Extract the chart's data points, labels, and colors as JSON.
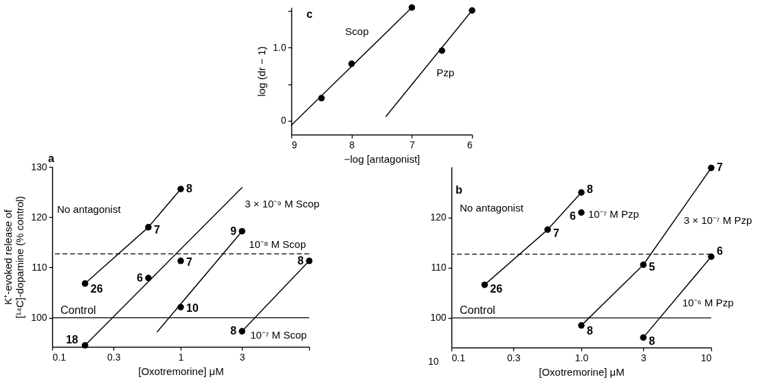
{
  "chart_data": [
    {
      "type": "scatter",
      "xlabel": "−log [antagonist]",
      "ylabel": "log (dr − 1)",
      "xlim": [
        9,
        6
      ],
      "xticks": [
        9,
        8,
        7,
        6
      ],
      "ylim": [
        -0.19,
        1.55
      ],
      "yticks": [
        0,
        {
          "value": 0.5,
          "label": null
        },
        {
          "value": 1,
          "label": "1.0"
        },
        {
          "value": 1.5,
          "label": null
        }
      ],
      "annotations": [
        "c"
      ],
      "series": [
        {
          "type": "scatter",
          "name": "Scop",
          "color": "#000000",
          "marker": "circle",
          "x": [
            8.5,
            8,
            7
          ],
          "values": [
            0.31,
            0.78,
            1.55
          ]
        },
        {
          "type": "line",
          "color": "#000000",
          "x": [
            9,
            7
          ],
          "values": [
            -0.06,
            1.55
          ]
        },
        {
          "type": "scatter",
          "name": "Pzp",
          "color": "#000000",
          "marker": "circle",
          "x": [
            6.5,
            6
          ],
          "values": [
            0.96,
            1.51
          ]
        },
        {
          "type": "line",
          "color": "#000000",
          "x": [
            7.43,
            6
          ],
          "values": [
            0.06,
            1.51
          ]
        }
      ]
    },
    {
      "type": "scatter",
      "xlabel": "[Oxotremorine] μM",
      "ylabel": "K⁺-evoked release of\n[¹⁴C]-dopamine (% control)",
      "log": "x",
      "xlim": [
        0.1,
        10
      ],
      "xticks": [
        0.1,
        0.3,
        1,
        3,
        {
          "value": 10,
          "label": null
        }
      ],
      "ylim": [
        94.2,
        130
      ],
      "yticks": [
        100,
        110,
        120,
        130
      ],
      "annotations": [
        "a",
        {
          "text": "26",
          "x": 0.18,
          "y": 106.8
        },
        {
          "text": "7",
          "x": 0.56,
          "y": 118
        },
        {
          "text": "8",
          "x": 1,
          "y": 125.6
        },
        {
          "text": "18",
          "x": 0.18,
          "y": 94.5
        },
        {
          "text": "6",
          "x": 0.56,
          "y": 107.9
        },
        {
          "text": "7",
          "x": 1,
          "y": 111.3
        },
        {
          "text": "10",
          "x": 1,
          "y": 102.1
        },
        {
          "text": "9",
          "x": 3,
          "y": 117.2
        },
        {
          "text": "8",
          "x": 3,
          "y": 97.3
        },
        {
          "text": "8",
          "x": 10,
          "y": 111.3
        }
      ],
      "ref_lines": [
        {
          "axis": "y",
          "value": 112.7,
          "line_style": "dashed"
        },
        {
          "axis": "y",
          "value": 100,
          "label": "Control"
        }
      ],
      "series": [
        {
          "type": "scatter",
          "name": "No antagonist",
          "color": "#000000",
          "marker": "circle",
          "x": [
            0.18,
            0.56,
            1
          ],
          "values": [
            106.8,
            118,
            125.6
          ]
        },
        {
          "type": "line",
          "color": "#000000",
          "x": [
            0.18,
            0.56,
            1
          ],
          "values": [
            106.8,
            118,
            125.6
          ]
        },
        {
          "type": "scatter",
          "color": "#000000",
          "marker": "circle",
          "x": [
            0.18,
            0.56,
            1
          ],
          "values": [
            94.5,
            107.9,
            111.3
          ]
        },
        {
          "type": "line",
          "name": "3 × 10⁻⁹ M Scop",
          "color": "#000000",
          "x": [
            0.18,
            3
          ],
          "values": [
            94.5,
            125.9
          ]
        },
        {
          "type": "scatter",
          "name": "10⁻⁸ M Scop",
          "color": "#000000",
          "marker": "circle",
          "x": [
            1,
            3
          ],
          "values": [
            102.1,
            117.2
          ]
        },
        {
          "type": "line",
          "color": "#000000",
          "x": [
            0.657,
            3
          ],
          "values": [
            97.2,
            117.2
          ]
        },
        {
          "type": "scatter",
          "name": "10⁻⁷ M Scop",
          "color": "#000000",
          "marker": "circle",
          "x": [
            3,
            10
          ],
          "values": [
            97.3,
            111.3
          ]
        },
        {
          "type": "line",
          "color": "#000000",
          "x": [
            3,
            10
          ],
          "values": [
            97.3,
            111.3
          ]
        }
      ]
    },
    {
      "type": "scatter",
      "xlabel": "[Oxotremorine] μM",
      "log": "x",
      "xlim": [
        0.1,
        10
      ],
      "xticks": [
        0.1,
        0.3,
        {
          "value": 1,
          "label": "1.0"
        },
        3,
        10
      ],
      "ylim": [
        94.1,
        130.1
      ],
      "yticks": [
        100,
        110,
        120
      ],
      "annotations": [
        "b",
        "10",
        {
          "text": "26",
          "x": 0.18,
          "y": 106.6
        },
        {
          "text": "7",
          "x": 0.55,
          "y": 117.6
        },
        {
          "text": "8",
          "x": 1,
          "y": 125
        },
        {
          "text": "6",
          "x": 1,
          "y": 121
        },
        {
          "text": "8",
          "x": 1,
          "y": 98.5
        },
        {
          "text": "5",
          "x": 3,
          "y": 110.6
        },
        {
          "text": "7",
          "x": 10,
          "y": 129.9
        },
        {
          "text": "8",
          "x": 3,
          "y": 96.1
        },
        {
          "text": "6",
          "x": 10,
          "y": 112.2
        }
      ],
      "ref_lines": [
        {
          "axis": "y",
          "value": 112.7,
          "line_style": "dashed"
        },
        {
          "axis": "y",
          "value": 100,
          "label": "Control"
        }
      ],
      "series": [
        {
          "type": "scatter",
          "name": "No antagonist",
          "color": "#000000",
          "marker": "circle",
          "x": [
            0.18,
            0.55,
            1
          ],
          "values": [
            106.6,
            117.6,
            125
          ]
        },
        {
          "type": "line",
          "color": "#000000",
          "x": [
            0.18,
            0.55,
            1
          ],
          "values": [
            106.6,
            117.6,
            125
          ]
        },
        {
          "type": "scatter",
          "name": "10⁻⁷ M Pzp",
          "color": "#000000",
          "marker": "circle",
          "x": [
            1
          ],
          "values": [
            121
          ]
        },
        {
          "type": "scatter",
          "color": "#000000",
          "marker": "circle",
          "x": [
            1,
            3,
            10
          ],
          "values": [
            98.5,
            110.6,
            129.9
          ]
        },
        {
          "type": "line",
          "name": "3 × 10⁻⁷ M Pzp",
          "color": "#000000",
          "x": [
            1,
            3,
            10
          ],
          "values": [
            98.5,
            110.6,
            129.9
          ]
        },
        {
          "type": "scatter",
          "color": "#000000",
          "marker": "circle",
          "x": [
            3,
            10
          ],
          "values": [
            96.1,
            112.2
          ]
        },
        {
          "type": "line",
          "name": "10⁻⁶ M Pzp",
          "color": "#000000",
          "x": [
            3,
            10
          ],
          "values": [
            96.1,
            112.2
          ]
        }
      ]
    }
  ]
}
